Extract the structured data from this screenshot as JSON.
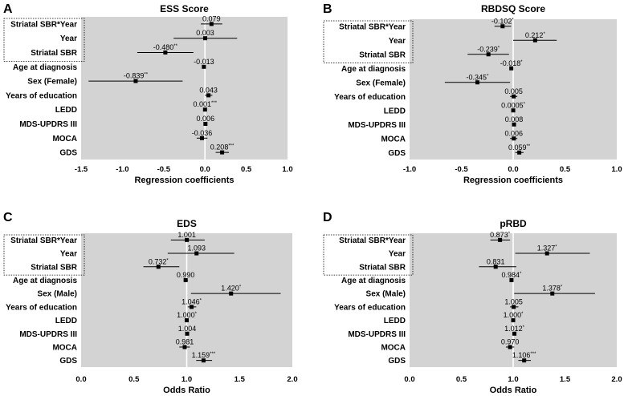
{
  "chart_data": [
    {
      "type": "forest",
      "panel_label": "A",
      "title": "ESS Score",
      "xlabel": "Regression coefficients",
      "xlim": [
        -1.5,
        1.0
      ],
      "ref_line": 0,
      "ticks": [
        -1.5,
        -1.0,
        -0.5,
        0.0,
        0.5,
        1.0
      ],
      "tick_labels": [
        "-1.5",
        "-1.0",
        "-0.5",
        "0.0",
        "0.5",
        "1.0"
      ],
      "boxed_rows": 3,
      "rows": [
        {
          "label": "Striatal SBR*Year",
          "est": 0.079,
          "lo": -0.05,
          "hi": 0.21,
          "text": "0.079",
          "sig": ""
        },
        {
          "label": "Year",
          "est": 0.003,
          "lo": -0.38,
          "hi": 0.39,
          "text": "0.003",
          "sig": ""
        },
        {
          "label": "Striatal SBR",
          "est": -0.48,
          "lo": -0.82,
          "hi": -0.14,
          "text": "-0.480",
          "sig": "**"
        },
        {
          "label": "Age at diagnosis",
          "est": -0.013,
          "lo": -0.03,
          "hi": 0.004,
          "text": "-0.013",
          "sig": ""
        },
        {
          "label": "Sex (Female)",
          "est": -0.839,
          "lo": -1.41,
          "hi": -0.27,
          "text": "-0.839",
          "sig": "**"
        },
        {
          "label": "Years of education",
          "est": 0.043,
          "lo": 0.0,
          "hi": 0.09,
          "text": "0.043",
          "sig": ""
        },
        {
          "label": "LEDD",
          "est": 0.001,
          "lo": 0.0,
          "hi": 0.002,
          "text": "0.001",
          "sig": "***"
        },
        {
          "label": "MDS-UPDRS III",
          "est": 0.006,
          "lo": -0.01,
          "hi": 0.02,
          "text": "0.006",
          "sig": ""
        },
        {
          "label": "MOCA",
          "est": -0.036,
          "lo": -0.1,
          "hi": 0.03,
          "text": "-0.036",
          "sig": ""
        },
        {
          "label": "GDS",
          "est": 0.208,
          "lo": 0.13,
          "hi": 0.29,
          "text": "0.208",
          "sig": "***"
        }
      ]
    },
    {
      "type": "forest",
      "panel_label": "B",
      "title": "RBDSQ Score",
      "xlabel": "Regression coefficients",
      "xlim": [
        -1.0,
        1.0
      ],
      "ref_line": 0,
      "ticks": [
        -1.0,
        -0.5,
        0.0,
        0.5,
        1.0
      ],
      "tick_labels": [
        "-1.0",
        "-0.5",
        "0.0",
        "0.5",
        "1.0"
      ],
      "boxed_rows": 3,
      "rows": [
        {
          "label": "Striatal SBR*Year",
          "est": -0.102,
          "lo": -0.18,
          "hi": -0.02,
          "text": "-0.102",
          "sig": "*"
        },
        {
          "label": "Year",
          "est": 0.212,
          "lo": 0.0,
          "hi": 0.42,
          "text": "0.212",
          "sig": "*"
        },
        {
          "label": "Striatal SBR",
          "est": -0.239,
          "lo": -0.44,
          "hi": -0.04,
          "text": "-0.239",
          "sig": "*"
        },
        {
          "label": "Age at diagnosis",
          "est": -0.018,
          "lo": -0.03,
          "hi": -0.006,
          "text": "-0.018",
          "sig": "*"
        },
        {
          "label": "Sex (Female)",
          "est": -0.345,
          "lo": -0.66,
          "hi": -0.03,
          "text": "-0.345",
          "sig": "*"
        },
        {
          "label": "Years of education",
          "est": 0.005,
          "lo": -0.03,
          "hi": 0.04,
          "text": "0.005",
          "sig": ""
        },
        {
          "label": "LEDD",
          "est": 0.0005,
          "lo": 0.0,
          "hi": 0.001,
          "text": "0.0005",
          "sig": "*"
        },
        {
          "label": "MDS-UPDRS III",
          "est": 0.008,
          "lo": -0.004,
          "hi": 0.02,
          "text": "0.008",
          "sig": ""
        },
        {
          "label": "MOCA",
          "est": 0.006,
          "lo": -0.03,
          "hi": 0.04,
          "text": "0.006",
          "sig": ""
        },
        {
          "label": "GDS",
          "est": 0.059,
          "lo": 0.02,
          "hi": 0.1,
          "text": "0.059",
          "sig": "**"
        }
      ]
    },
    {
      "type": "forest",
      "panel_label": "C",
      "title": "EDS",
      "xlabel": "Odds Ratio",
      "xlim": [
        0.0,
        2.0
      ],
      "ref_line": 1,
      "ticks": [
        0.0,
        0.5,
        1.0,
        1.5,
        2.0
      ],
      "tick_labels": [
        "0.0",
        "0.5",
        "1.0",
        "1.5",
        "2.0"
      ],
      "boxed_rows": 3,
      "rows": [
        {
          "label": "Striatal SBR*Year",
          "est": 1.001,
          "lo": 0.85,
          "hi": 1.17,
          "text": "1.001",
          "sig": ""
        },
        {
          "label": "Year",
          "est": 1.093,
          "lo": 0.82,
          "hi": 1.45,
          "text": "1.093",
          "sig": ""
        },
        {
          "label": "Striatal SBR",
          "est": 0.732,
          "lo": 0.59,
          "hi": 0.93,
          "text": "0.732",
          "sig": "*"
        },
        {
          "label": "Age at diagnosis",
          "est": 0.99,
          "lo": 0.97,
          "hi": 1.01,
          "text": "0.990",
          "sig": ""
        },
        {
          "label": "Sex (Male)",
          "est": 1.42,
          "lo": 1.04,
          "hi": 1.89,
          "text": "1.420",
          "sig": "*"
        },
        {
          "label": "Years of education",
          "est": 1.046,
          "lo": 1.01,
          "hi": 1.09,
          "text": "1.046",
          "sig": "*"
        },
        {
          "label": "LEDD",
          "est": 1.0,
          "lo": 1.0,
          "hi": 1.001,
          "text": "1.000",
          "sig": "*"
        },
        {
          "label": "MDS-UPDRS III",
          "est": 1.004,
          "lo": 0.99,
          "hi": 1.02,
          "text": "1.004",
          "sig": ""
        },
        {
          "label": "MOCA",
          "est": 0.981,
          "lo": 0.93,
          "hi": 1.03,
          "text": "0.981",
          "sig": ""
        },
        {
          "label": "GDS",
          "est": 1.159,
          "lo": 1.09,
          "hi": 1.24,
          "text": "1.159",
          "sig": "***"
        }
      ]
    },
    {
      "type": "forest",
      "panel_label": "D",
      "title": "pRBD",
      "xlabel": "Odds Ratio",
      "xlim": [
        0.0,
        2.0
      ],
      "ref_line": 1,
      "ticks": [
        0.0,
        0.5,
        1.0,
        1.5,
        2.0
      ],
      "tick_labels": [
        "0.0",
        "0.5",
        "1.0",
        "1.5",
        "2.0"
      ],
      "boxed_rows": 3,
      "rows": [
        {
          "label": "Striatal SBR*Year",
          "est": 0.873,
          "lo": 0.78,
          "hi": 0.97,
          "text": "0.873",
          "sig": "*"
        },
        {
          "label": "Year",
          "est": 1.327,
          "lo": 1.02,
          "hi": 1.74,
          "text": "1.327",
          "sig": "*"
        },
        {
          "label": "Striatal SBR",
          "est": 0.831,
          "lo": 0.67,
          "hi": 1.03,
          "text": "0.831",
          "sig": ""
        },
        {
          "label": "Age at diagnosis",
          "est": 0.984,
          "lo": 0.97,
          "hi": 0.999,
          "text": "0.984",
          "sig": "*"
        },
        {
          "label": "Sex (Male)",
          "est": 1.378,
          "lo": 1.01,
          "hi": 1.79,
          "text": "1.378",
          "sig": "*"
        },
        {
          "label": "Years of education",
          "est": 1.005,
          "lo": 0.97,
          "hi": 1.05,
          "text": "1.005",
          "sig": ""
        },
        {
          "label": "LEDD",
          "est": 1.0,
          "lo": 1.0,
          "hi": 1.001,
          "text": "1.000",
          "sig": "*"
        },
        {
          "label": "MDS-UPDRS III",
          "est": 1.012,
          "lo": 1.0,
          "hi": 1.03,
          "text": "1.012",
          "sig": "*"
        },
        {
          "label": "MOCA",
          "est": 0.97,
          "lo": 0.93,
          "hi": 1.01,
          "text": "0.970",
          "sig": ""
        },
        {
          "label": "GDS",
          "est": 1.106,
          "lo": 1.05,
          "hi": 1.17,
          "text": "1.106",
          "sig": "***"
        }
      ]
    }
  ],
  "colors": {
    "plot_bg": "#d3d3d3",
    "ref_line": "#ffffff",
    "marker": "#000000"
  }
}
